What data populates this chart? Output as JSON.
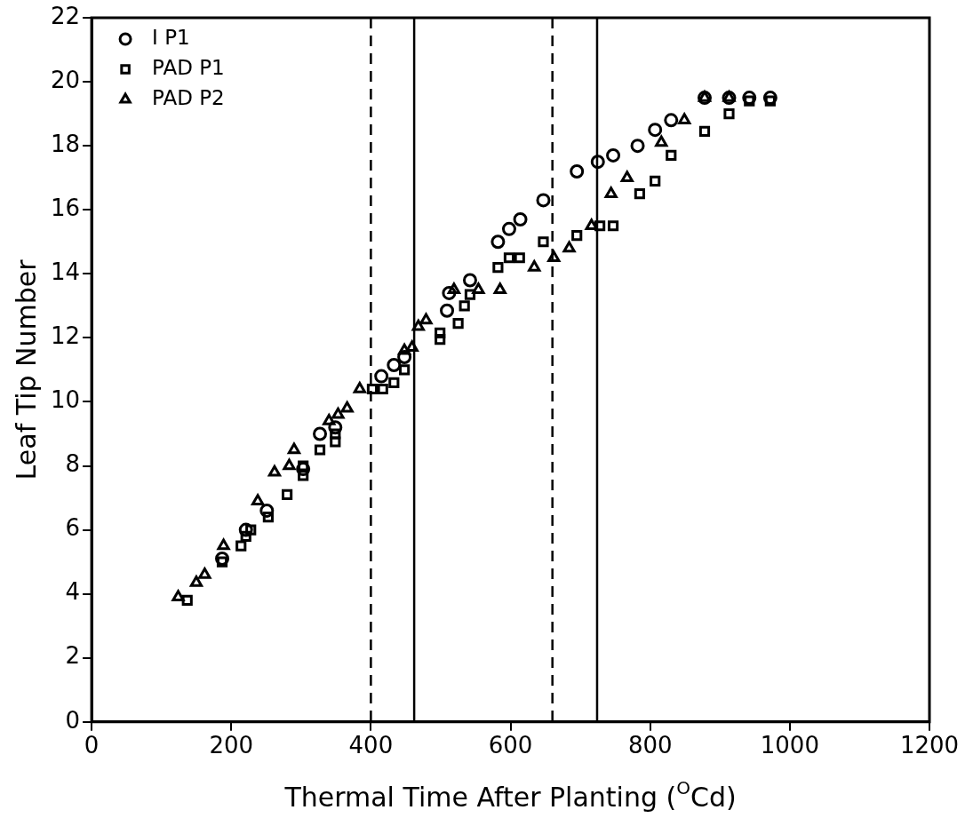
{
  "chart_data": {
    "type": "scatter",
    "xlabel": "Thermal Time After Planting ($^{O}$Cd)",
    "ylabel": "Leaf Tip Number",
    "xlim": [
      0,
      1200
    ],
    "xticks": [
      0,
      200,
      400,
      600,
      800,
      1000,
      1200
    ],
    "ylim": [
      0,
      22
    ],
    "yticks": [
      0,
      2,
      4,
      6,
      8,
      10,
      12,
      14,
      16,
      18,
      20,
      22
    ],
    "grid": false,
    "legend": "top left",
    "series": [
      {
        "name": "I P1",
        "color": "#000000",
        "marker": "circle",
        "x": [
          187,
          221,
          251,
          303,
          327,
          349,
          415,
          433,
          448,
          509,
          512,
          542,
          582,
          598,
          614,
          647,
          695,
          725,
          747,
          782,
          807,
          830,
          878,
          913,
          942,
          972
        ],
        "values": [
          5.1,
          6.0,
          6.6,
          7.9,
          9.0,
          9.2,
          10.8,
          11.15,
          11.4,
          12.85,
          13.4,
          13.8,
          15.0,
          15.4,
          15.7,
          16.3,
          17.2,
          17.5,
          17.7,
          18.0,
          18.5,
          18.8,
          19.5,
          19.5,
          19.5,
          19.5
        ]
      },
      {
        "name": "PAD P1",
        "color": "#000000",
        "marker": "square",
        "x": [
          137,
          187,
          214,
          221,
          228,
          253,
          280,
          303,
          303,
          327,
          349,
          349,
          402,
          417,
          433,
          448,
          499,
          499,
          525,
          534,
          542,
          582,
          598,
          613,
          647,
          695,
          728,
          747,
          785,
          807,
          830,
          878,
          913,
          942,
          972
        ],
        "values": [
          3.8,
          5.0,
          5.5,
          5.8,
          6.0,
          6.4,
          7.1,
          7.7,
          8.0,
          8.5,
          8.75,
          9.0,
          10.4,
          10.4,
          10.6,
          11.0,
          11.95,
          12.15,
          12.45,
          13.0,
          13.35,
          14.2,
          14.5,
          14.5,
          15.0,
          15.2,
          15.5,
          15.5,
          16.5,
          16.9,
          17.7,
          18.45,
          19.0,
          19.4,
          19.4
        ]
      },
      {
        "name": "PAD P2",
        "color": "#000000",
        "marker": "triangle",
        "x": [
          124,
          150,
          162,
          189,
          238,
          262,
          283,
          290,
          340,
          353,
          366,
          384,
          448,
          459,
          468,
          479,
          519,
          554,
          585,
          634,
          662,
          684,
          716,
          744,
          767,
          816,
          849,
          878,
          913
        ],
        "values": [
          3.9,
          4.35,
          4.6,
          5.5,
          6.9,
          7.8,
          8.0,
          8.5,
          9.4,
          9.6,
          9.8,
          10.4,
          11.6,
          11.7,
          12.35,
          12.55,
          13.5,
          13.5,
          13.5,
          14.2,
          14.5,
          14.8,
          15.5,
          16.5,
          17.0,
          18.1,
          18.8,
          19.5,
          19.5
        ]
      }
    ],
    "ref_lines": [
      {
        "axis": "x",
        "value": 400,
        "color": "#000000",
        "line_style": "dashed"
      },
      {
        "axis": "x",
        "value": 462,
        "color": "#000000",
        "line_style": "solid"
      },
      {
        "axis": "x",
        "value": 660,
        "color": "#000000",
        "line_style": "dashed"
      },
      {
        "axis": "x",
        "value": 724,
        "color": "#000000",
        "line_style": "solid"
      }
    ]
  }
}
